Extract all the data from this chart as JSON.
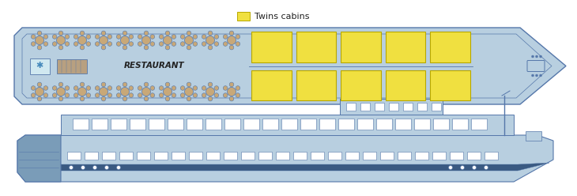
{
  "bg_color": "#ffffff",
  "ship_color": "#b8cfe0",
  "ship_dark": "#7a9cb8",
  "ship_outline": "#5577aa",
  "ship_stripe": "#3a5a82",
  "deck_color": "#b8cfe0",
  "deck_outline": "#5577aa",
  "cabin_yellow": "#f0e040",
  "cabin_border": "#b8a800",
  "table_color": "#c8a878",
  "win_color": "#ddeeff",
  "legend_label": "Twins cabins",
  "legend_fs": 8
}
